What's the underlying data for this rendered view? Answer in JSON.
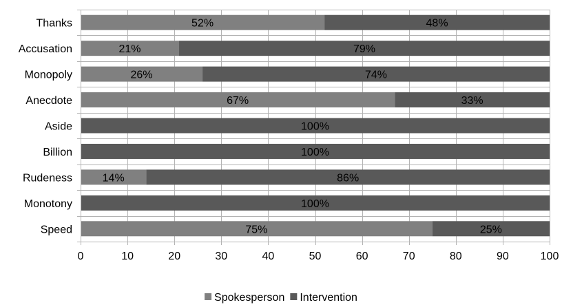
{
  "chart_data": {
    "type": "bar",
    "orientation": "horizontal",
    "stacked": true,
    "categories": [
      "Thanks",
      "Accusation",
      "Monopoly",
      "Anecdote",
      "Aside",
      "Billion",
      "Rudeness",
      "Monotony",
      "Speed"
    ],
    "series": [
      {
        "name": "Spokesperson",
        "color": "#808080",
        "values": [
          52,
          21,
          26,
          67,
          0,
          0,
          14,
          0,
          75
        ],
        "labels": [
          "52%",
          "21%",
          "26%",
          "67%",
          "",
          "",
          "14%",
          "",
          "75%"
        ]
      },
      {
        "name": "Intervention",
        "color": "#595959",
        "values": [
          48,
          79,
          74,
          33,
          100,
          100,
          86,
          100,
          25
        ],
        "labels": [
          "48%",
          "79%",
          "74%",
          "33%",
          "100%",
          "100%",
          "86%",
          "100%",
          "25%"
        ]
      }
    ],
    "xlim": [
      0,
      100
    ],
    "xticks": [
      0,
      10,
      20,
      30,
      40,
      50,
      60,
      70,
      80,
      90,
      100
    ],
    "grid": "vertical",
    "legend_position": "bottom",
    "title": "",
    "xlabel": "",
    "ylabel": ""
  }
}
